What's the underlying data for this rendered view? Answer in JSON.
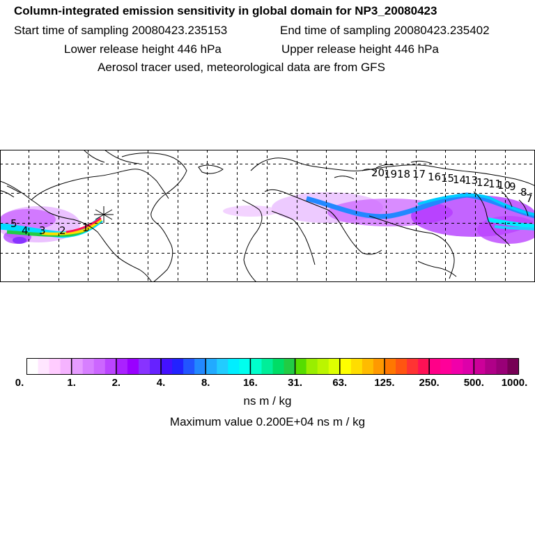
{
  "header": {
    "title": "Column-integrated emission sensitivity in global domain for NP3_20080423",
    "start_label": "Start time of sampling 20080423.235153",
    "end_label": "End time of sampling 20080423.235402",
    "lower_label": "Lower release height  446 hPa",
    "upper_label": "Upper release height  446 hPa",
    "tracer_label": "Aerosol tracer used, meteorological data are from GFS"
  },
  "map": {
    "day_labels": [
      "5",
      "4",
      "3",
      "2",
      "1",
      "20",
      "19",
      "18",
      "17",
      "16",
      "15",
      "14",
      "13",
      "12",
      "11",
      "10",
      "9",
      "8",
      "7"
    ],
    "release_marker": "release-point-star"
  },
  "legend": {
    "colors": [
      "#ffffff",
      "#ffe6ff",
      "#ffccff",
      "#f5b3ff",
      "#e69cff",
      "#d77fff",
      "#cc66ff",
      "#bb44ff",
      "#aa22ff",
      "#9900ff",
      "#8833ff",
      "#6622ff",
      "#4411ff",
      "#2222ff",
      "#2255ff",
      "#2288ff",
      "#22aaff",
      "#22ccff",
      "#00eeff",
      "#00ffee",
      "#00ffcc",
      "#00ee99",
      "#00dd66",
      "#22cc44",
      "#55dd00",
      "#99ee00",
      "#bbf500",
      "#ddff00",
      "#ffff00",
      "#ffdd00",
      "#ffbb00",
      "#ff9900",
      "#ff7700",
      "#ff5511",
      "#ff3333",
      "#ff1155",
      "#ff0088",
      "#ff0099",
      "#f000aa",
      "#dd00aa",
      "#cc0099",
      "#b00088",
      "#990077",
      "#770055"
    ],
    "tick_labels": [
      "0.",
      "1.",
      "2.",
      "4.",
      "8.",
      "16.",
      "31.",
      "63.",
      "125.",
      "250.",
      "500.",
      "1000."
    ],
    "units": "ns m / kg",
    "max_value": "Maximum value  0.200E+04 ns m / kg"
  }
}
